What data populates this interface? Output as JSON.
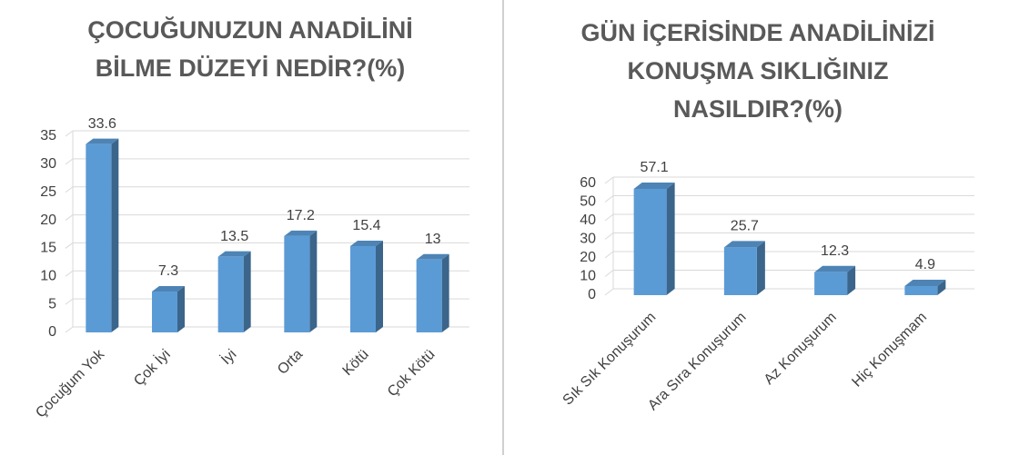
{
  "chart_data": [
    {
      "type": "bar3d",
      "title": [
        "ÇOCUĞUNUZUN ANADİLİNİ",
        "BİLME DÜZEYİ NEDİR?(%)"
      ],
      "categories": [
        "Çocuğum Yok",
        "Çok İyi",
        "İyi",
        "Orta",
        "Kötü",
        "Çok Kötü"
      ],
      "values": [
        33.6,
        7.3,
        13.5,
        17.2,
        15.4,
        13
      ],
      "color": "#5b9bd5",
      "ylim": [
        0,
        35
      ],
      "yticks": [
        0,
        5,
        10,
        15,
        20,
        25,
        30,
        35
      ],
      "grid": true
    },
    {
      "type": "bar3d",
      "title": [
        "GÜN İÇERİSİNDE ANADİLİNİZİ",
        "KONUŞMA SIKLIĞINIZ",
        "NASILDIR?(%)"
      ],
      "categories": [
        "Sık Sık Konuşurum",
        "Ara Sıra Konuşurum",
        "Az Konuşurum",
        "Hiç Konuşmam"
      ],
      "values": [
        57.1,
        25.7,
        12.3,
        4.9
      ],
      "color": "#5b9bd5",
      "ylim": [
        0,
        60
      ],
      "yticks": [
        0,
        10,
        20,
        30,
        40,
        50,
        60
      ],
      "grid": true
    }
  ]
}
